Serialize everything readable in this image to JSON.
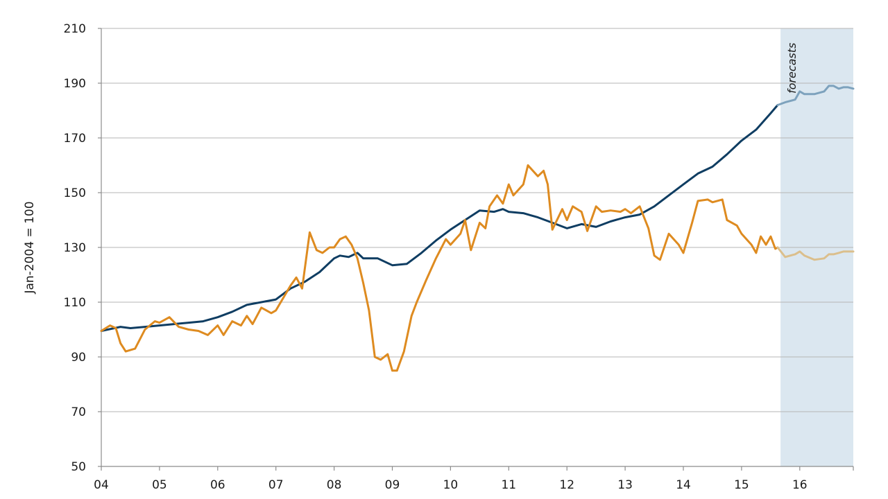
{
  "chart_data": {
    "type": "line",
    "title": "",
    "xlabel": "",
    "ylabel": "Jan-2004 = 100",
    "ylim": [
      50,
      210
    ],
    "yticks": [
      50,
      70,
      90,
      110,
      130,
      150,
      170,
      190,
      210
    ],
    "xlim": [
      2004.0,
      2016.92
    ],
    "xticks": [
      {
        "x": 2004,
        "label": "04"
      },
      {
        "x": 2005,
        "label": "05"
      },
      {
        "x": 2006,
        "label": "06"
      },
      {
        "x": 2007,
        "label": "07"
      },
      {
        "x": 2008,
        "label": "08"
      },
      {
        "x": 2009,
        "label": "09"
      },
      {
        "x": 2010,
        "label": "10"
      },
      {
        "x": 2011,
        "label": "11"
      },
      {
        "x": 2012,
        "label": "12"
      },
      {
        "x": 2013,
        "label": "13"
      },
      {
        "x": 2014,
        "label": "14"
      },
      {
        "x": 2015,
        "label": "15"
      },
      {
        "x": 2016,
        "label": "16"
      }
    ],
    "grid": true,
    "legend": "none",
    "forecast_region": {
      "x_start": 2015.67,
      "x_end": 2016.92,
      "label": "forecasts",
      "color": "#dbe7f0"
    },
    "series": [
      {
        "color": "#0f3d62",
        "x": [
          2004.0,
          2004.33,
          2004.5,
          2004.75,
          2005.0,
          2005.25,
          2005.5,
          2005.75,
          2006.0,
          2006.25,
          2006.5,
          2006.75,
          2007.0,
          2007.25,
          2007.5,
          2007.75,
          2008.0,
          2008.1,
          2008.25,
          2008.4,
          2008.5,
          2008.75,
          2009.0,
          2009.25,
          2009.5,
          2009.75,
          2010.0,
          2010.25,
          2010.5,
          2010.75,
          2010.9,
          2011.0,
          2011.25,
          2011.5,
          2011.75,
          2012.0,
          2012.25,
          2012.5,
          2012.75,
          2013.0,
          2013.25,
          2013.5,
          2013.75,
          2014.0,
          2014.25,
          2014.5,
          2014.75,
          2015.0,
          2015.25,
          2015.5,
          2015.62
        ],
        "values": [
          99.5,
          101,
          100.5,
          101,
          101.5,
          102,
          102.5,
          103,
          104.5,
          106.5,
          109,
          110,
          111,
          115,
          117.5,
          121,
          126,
          127,
          126.5,
          128,
          126,
          126,
          123.5,
          124,
          128,
          132.5,
          136.5,
          140,
          143.5,
          143,
          144,
          143,
          142.5,
          141,
          139,
          137,
          138.5,
          137.5,
          139.5,
          141,
          142,
          145,
          149,
          153,
          157,
          159.5,
          164,
          169,
          173,
          179,
          182
        ]
      },
      {
        "color": "#de8b20",
        "x": [
          2004.0,
          2004.15,
          2004.25,
          2004.33,
          2004.42,
          2004.58,
          2004.75,
          2004.92,
          2005.0,
          2005.17,
          2005.33,
          2005.5,
          2005.67,
          2005.83,
          2006.0,
          2006.1,
          2006.25,
          2006.4,
          2006.5,
          2006.6,
          2006.75,
          2006.92,
          2007.0,
          2007.25,
          2007.35,
          2007.45,
          2007.58,
          2007.7,
          2007.8,
          2007.92,
          2008.0,
          2008.1,
          2008.2,
          2008.3,
          2008.4,
          2008.5,
          2008.6,
          2008.7,
          2008.8,
          2008.92,
          2009.0,
          2009.08,
          2009.2,
          2009.33,
          2009.42,
          2009.58,
          2009.75,
          2009.92,
          2010.0,
          2010.17,
          2010.25,
          2010.35,
          2010.5,
          2010.6,
          2010.67,
          2010.8,
          2010.9,
          2011.0,
          2011.08,
          2011.25,
          2011.33,
          2011.5,
          2011.6,
          2011.67,
          2011.75,
          2011.92,
          2012.0,
          2012.1,
          2012.25,
          2012.35,
          2012.5,
          2012.6,
          2012.75,
          2012.92,
          2013.0,
          2013.1,
          2013.25,
          2013.4,
          2013.5,
          2013.6,
          2013.75,
          2013.92,
          2014.0,
          2014.15,
          2014.25,
          2014.42,
          2014.5,
          2014.67,
          2014.75,
          2014.92,
          2015.0,
          2015.17,
          2015.25,
          2015.33,
          2015.42,
          2015.5,
          2015.58,
          2015.62
        ],
        "values": [
          99.5,
          101.5,
          100.5,
          95,
          92,
          93,
          100,
          103,
          102.5,
          104.5,
          101,
          100,
          99.5,
          98,
          101.5,
          98,
          103,
          101.5,
          105,
          102,
          108,
          106,
          107,
          116,
          119,
          115,
          135.5,
          129,
          128,
          130,
          130,
          133,
          134,
          131,
          126,
          117,
          107,
          90,
          89,
          91,
          85,
          85,
          92,
          105,
          110,
          118,
          126,
          133,
          131,
          135,
          140,
          129,
          139,
          137,
          145,
          149,
          146,
          153,
          149,
          153,
          160,
          156,
          158,
          153,
          136.5,
          144,
          140,
          145,
          143,
          136,
          145,
          143,
          143.5,
          143,
          144,
          142.5,
          145,
          137,
          127,
          125.5,
          135,
          131,
          128,
          139,
          147,
          147.5,
          146.5,
          147.5,
          140,
          138,
          135,
          131,
          128,
          134,
          131,
          134,
          129.5,
          130
        ]
      },
      {
        "color": "#7da2bd",
        "x": [
          2015.62,
          2015.75,
          2015.92,
          2016.0,
          2016.08,
          2016.17,
          2016.25,
          2016.42,
          2016.5,
          2016.58,
          2016.67,
          2016.75,
          2016.83,
          2016.92
        ],
        "values": [
          182,
          183,
          184,
          187,
          186,
          186,
          186,
          187,
          189,
          189,
          188,
          188.5,
          188.5,
          188
        ]
      },
      {
        "color": "#dbbf8c",
        "x": [
          2015.62,
          2015.75,
          2015.92,
          2016.0,
          2016.08,
          2016.25,
          2016.42,
          2016.5,
          2016.58,
          2016.67,
          2016.75,
          2016.83,
          2016.92
        ],
        "values": [
          130,
          126.5,
          127.5,
          128.5,
          127,
          125.5,
          126,
          127.5,
          127.5,
          128,
          128.5,
          128.5,
          128.5
        ]
      }
    ]
  }
}
